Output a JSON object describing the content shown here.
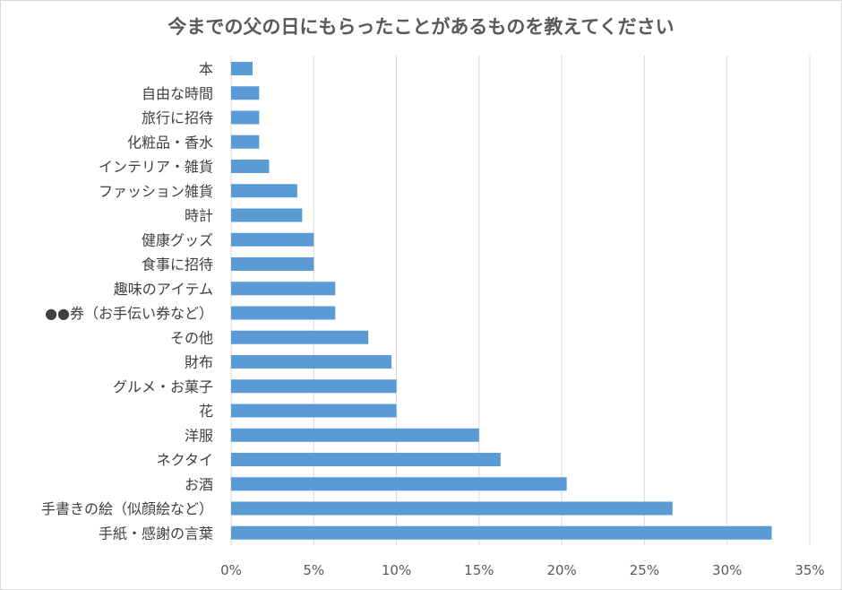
{
  "colors": {
    "bar": "#5b9bd5",
    "grid": "#d9d9d9",
    "text": "#404040",
    "title": "#595959"
  },
  "chart_data": {
    "type": "bar",
    "orientation": "horizontal",
    "title": "今までの父の日にもらったことがあるものを教えてください",
    "xlabel": "",
    "ylabel": "",
    "xlim": [
      0,
      35
    ],
    "xticks": [
      0,
      5,
      10,
      15,
      20,
      25,
      30,
      35
    ],
    "xtick_labels": [
      "0%",
      "5%",
      "10%",
      "15%",
      "20%",
      "25%",
      "30%",
      "35%"
    ],
    "grid": true,
    "legend": "none",
    "unit": "%",
    "categories": [
      "本",
      "自由な時間",
      "旅行に招待",
      "化粧品・香水",
      "インテリア・雑貨",
      "ファッション雑貨",
      "時計",
      "健康グッズ",
      "食事に招待",
      "趣味のアイテム",
      "●●券（お手伝い券など）",
      "その他",
      "財布",
      "グルメ・お菓子",
      "花",
      "洋服",
      "ネクタイ",
      "お酒",
      "手書きの絵（似顔絵など）",
      "手紙・感謝の言葉"
    ],
    "values": [
      1.3,
      1.7,
      1.7,
      1.7,
      2.3,
      4.0,
      4.3,
      5.0,
      5.0,
      6.3,
      6.3,
      8.3,
      9.7,
      10.0,
      10.0,
      15.0,
      16.3,
      20.3,
      26.7,
      32.7
    ]
  }
}
